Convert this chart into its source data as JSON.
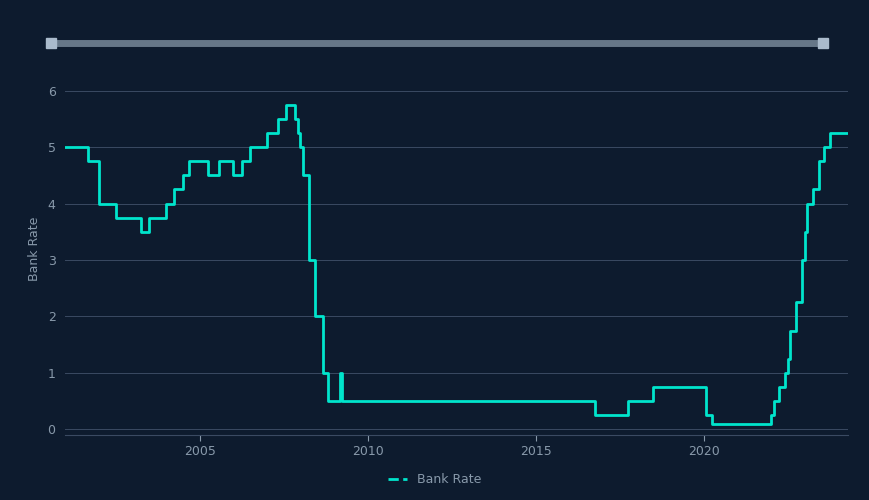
{
  "background_color": "#0d1b2e",
  "plot_bg_color": "#0d1b2e",
  "line_color": "#00e5cc",
  "line_width": 2.0,
  "grid_color": "#3a4a62",
  "tick_color": "#8899aa",
  "ylabel": "Bank Rate",
  "legend_label": "Bank Rate",
  "ylim": [
    -0.1,
    6.5
  ],
  "yticks": [
    0,
    1,
    2,
    3,
    4,
    5,
    6
  ],
  "xticks": [
    2005,
    2010,
    2015,
    2020
  ],
  "slider_color": "#667788",
  "slider_handle_color": "#aabbcc",
  "dates": [
    2001.0,
    2001.67,
    2002.0,
    2002.5,
    2003.0,
    2003.25,
    2003.5,
    2003.83,
    2004.0,
    2004.25,
    2004.5,
    2004.67,
    2004.83,
    2005.0,
    2005.25,
    2005.58,
    2006.0,
    2006.25,
    2006.5,
    2006.75,
    2007.0,
    2007.33,
    2007.58,
    2007.75,
    2007.83,
    2007.92,
    2008.0,
    2008.08,
    2008.25,
    2008.42,
    2008.67,
    2008.83,
    2009.0,
    2009.17,
    2009.25,
    2016.5,
    2016.75,
    2017.75,
    2018.5,
    2019.67,
    2020.0,
    2020.08,
    2020.25,
    2021.92,
    2022.0,
    2022.08,
    2022.25,
    2022.42,
    2022.5,
    2022.58,
    2022.75,
    2022.92,
    2023.0,
    2023.08,
    2023.25,
    2023.42,
    2023.58,
    2023.75,
    2023.92,
    2024.0
  ],
  "rates": [
    5.0,
    4.75,
    4.0,
    3.75,
    3.75,
    3.5,
    3.75,
    3.75,
    4.0,
    4.25,
    4.5,
    4.75,
    4.75,
    4.75,
    4.5,
    4.75,
    4.5,
    4.75,
    5.0,
    5.0,
    5.25,
    5.5,
    5.75,
    5.75,
    5.5,
    5.25,
    5.0,
    4.5,
    3.0,
    2.0,
    1.0,
    0.5,
    0.5,
    1.0,
    0.5,
    0.5,
    0.25,
    0.5,
    0.75,
    0.75,
    0.75,
    0.25,
    0.1,
    0.1,
    0.25,
    0.5,
    0.75,
    1.0,
    1.25,
    1.75,
    2.25,
    3.0,
    3.5,
    4.0,
    4.25,
    4.75,
    5.0,
    5.25,
    5.25,
    5.25
  ],
  "xmin": 2001.0,
  "xmax": 2024.3
}
